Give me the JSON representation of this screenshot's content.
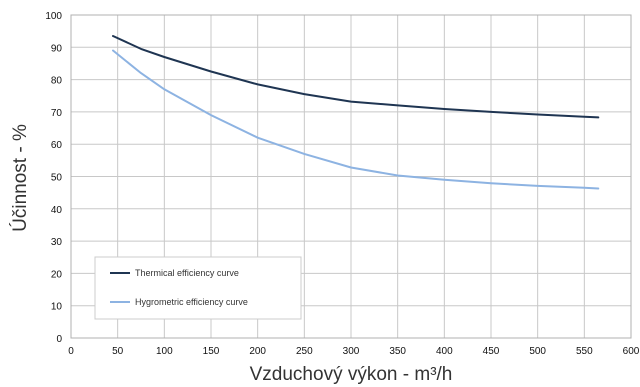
{
  "chart_data": {
    "type": "line",
    "xlabel": "Vzduchový výkon - m³/h",
    "ylabel": "Účinnost - %",
    "xlim": [
      0,
      600
    ],
    "ylim": [
      0,
      100
    ],
    "x_ticks": [
      0,
      50,
      100,
      150,
      200,
      250,
      300,
      350,
      400,
      450,
      500,
      550,
      600
    ],
    "y_ticks": [
      0,
      10,
      20,
      30,
      40,
      50,
      60,
      70,
      80,
      90,
      100
    ],
    "grid": true,
    "legend_position": "bottom-left",
    "series": [
      {
        "name": "Thermical efficiency curve",
        "color": "#1f3552",
        "x": [
          45,
          75,
          100,
          150,
          200,
          250,
          300,
          350,
          400,
          450,
          500,
          550,
          565
        ],
        "y": [
          93.5,
          89.5,
          87,
          82.5,
          78.5,
          75.5,
          73.2,
          72,
          70.9,
          70,
          69.2,
          68.5,
          68.3
        ]
      },
      {
        "name": "Hygrometric efficiency curve",
        "color": "#8db3e2",
        "x": [
          45,
          75,
          100,
          150,
          200,
          250,
          300,
          350,
          400,
          450,
          500,
          550,
          565
        ],
        "y": [
          89,
          82,
          77,
          69,
          62,
          57,
          52.8,
          50.3,
          49,
          47.9,
          47.1,
          46.5,
          46.3
        ]
      }
    ]
  }
}
